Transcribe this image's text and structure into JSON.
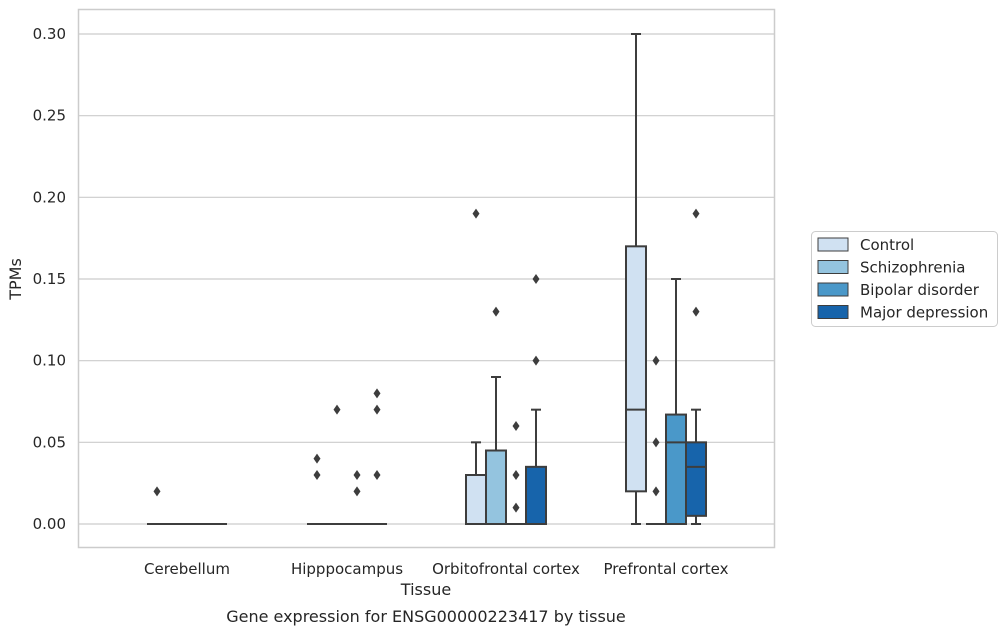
{
  "chart_data": {
    "type": "box",
    "caption": "Gene expression for ENSG00000223417 by tissue",
    "xlabel": "Tissue",
    "ylabel": "TPMs",
    "ylim": [
      -0.015,
      0.315
    ],
    "yticks": [
      0.0,
      0.05,
      0.1,
      0.15,
      0.2,
      0.25,
      0.3
    ],
    "ytick_labels": [
      "0.00",
      "0.05",
      "0.10",
      "0.15",
      "0.20",
      "0.25",
      "0.30"
    ],
    "grid": "horizontal",
    "legend_position": "right",
    "categories": [
      "Cerebellum",
      "Hipppocampus",
      "Orbitofrontal cortex",
      "Prefrontal cortex"
    ],
    "series": [
      {
        "name": "Control",
        "color": "#d0e1f2",
        "boxes": [
          {
            "whislo": 0,
            "q1": 0,
            "med": 0,
            "q3": 0,
            "whishi": 0,
            "fliers": [
              0.02
            ]
          },
          {
            "whislo": 0,
            "q1": 0,
            "med": 0,
            "q3": 0,
            "whishi": 0,
            "fliers": [
              0.03,
              0.04
            ]
          },
          {
            "whislo": 0,
            "q1": 0,
            "med": 0,
            "q3": 0.03,
            "whishi": 0.05,
            "fliers": [
              0.19
            ]
          },
          {
            "whislo": 0,
            "q1": 0.02,
            "med": 0.07,
            "q3": 0.17,
            "whishi": 0.3,
            "fliers": []
          }
        ]
      },
      {
        "name": "Schizophrenia",
        "color": "#94c4df",
        "boxes": [
          {
            "whislo": 0,
            "q1": 0,
            "med": 0,
            "q3": 0,
            "whishi": 0,
            "fliers": []
          },
          {
            "whislo": 0,
            "q1": 0,
            "med": 0,
            "q3": 0,
            "whishi": 0,
            "fliers": [
              0.07
            ]
          },
          {
            "whislo": 0,
            "q1": 0,
            "med": 0,
            "q3": 0.045,
            "whishi": 0.09,
            "fliers": [
              0.13
            ]
          },
          {
            "whislo": 0,
            "q1": 0,
            "med": 0,
            "q3": 0,
            "whishi": 0,
            "fliers": [
              0.02,
              0.05,
              0.1
            ]
          }
        ]
      },
      {
        "name": "Bipolar disorder",
        "color": "#4a98c9",
        "boxes": [
          {
            "whislo": 0,
            "q1": 0,
            "med": 0,
            "q3": 0,
            "whishi": 0,
            "fliers": []
          },
          {
            "whislo": 0,
            "q1": 0,
            "med": 0,
            "q3": 0,
            "whishi": 0,
            "fliers": [
              0.02,
              0.03
            ]
          },
          {
            "whislo": 0,
            "q1": 0,
            "med": 0,
            "q3": 0,
            "whishi": 0,
            "fliers": [
              0.01,
              0.03,
              0.06
            ]
          },
          {
            "whislo": 0,
            "q1": 0,
            "med": 0.05,
            "q3": 0.067,
            "whishi": 0.15,
            "fliers": []
          }
        ]
      },
      {
        "name": "Major depression",
        "color": "#1764ab",
        "boxes": [
          {
            "whislo": 0,
            "q1": 0,
            "med": 0,
            "q3": 0,
            "whishi": 0,
            "fliers": []
          },
          {
            "whislo": 0,
            "q1": 0,
            "med": 0,
            "q3": 0,
            "whishi": 0,
            "fliers": [
              0.03,
              0.07,
              0.08
            ]
          },
          {
            "whislo": 0,
            "q1": 0,
            "med": 0,
            "q3": 0.035,
            "whishi": 0.07,
            "fliers": [
              0.1,
              0.15
            ]
          },
          {
            "whislo": 0,
            "q1": 0.005,
            "med": 0.035,
            "q3": 0.05,
            "whishi": 0.07,
            "fliers": [
              0.13,
              0.19
            ]
          }
        ]
      }
    ]
  }
}
